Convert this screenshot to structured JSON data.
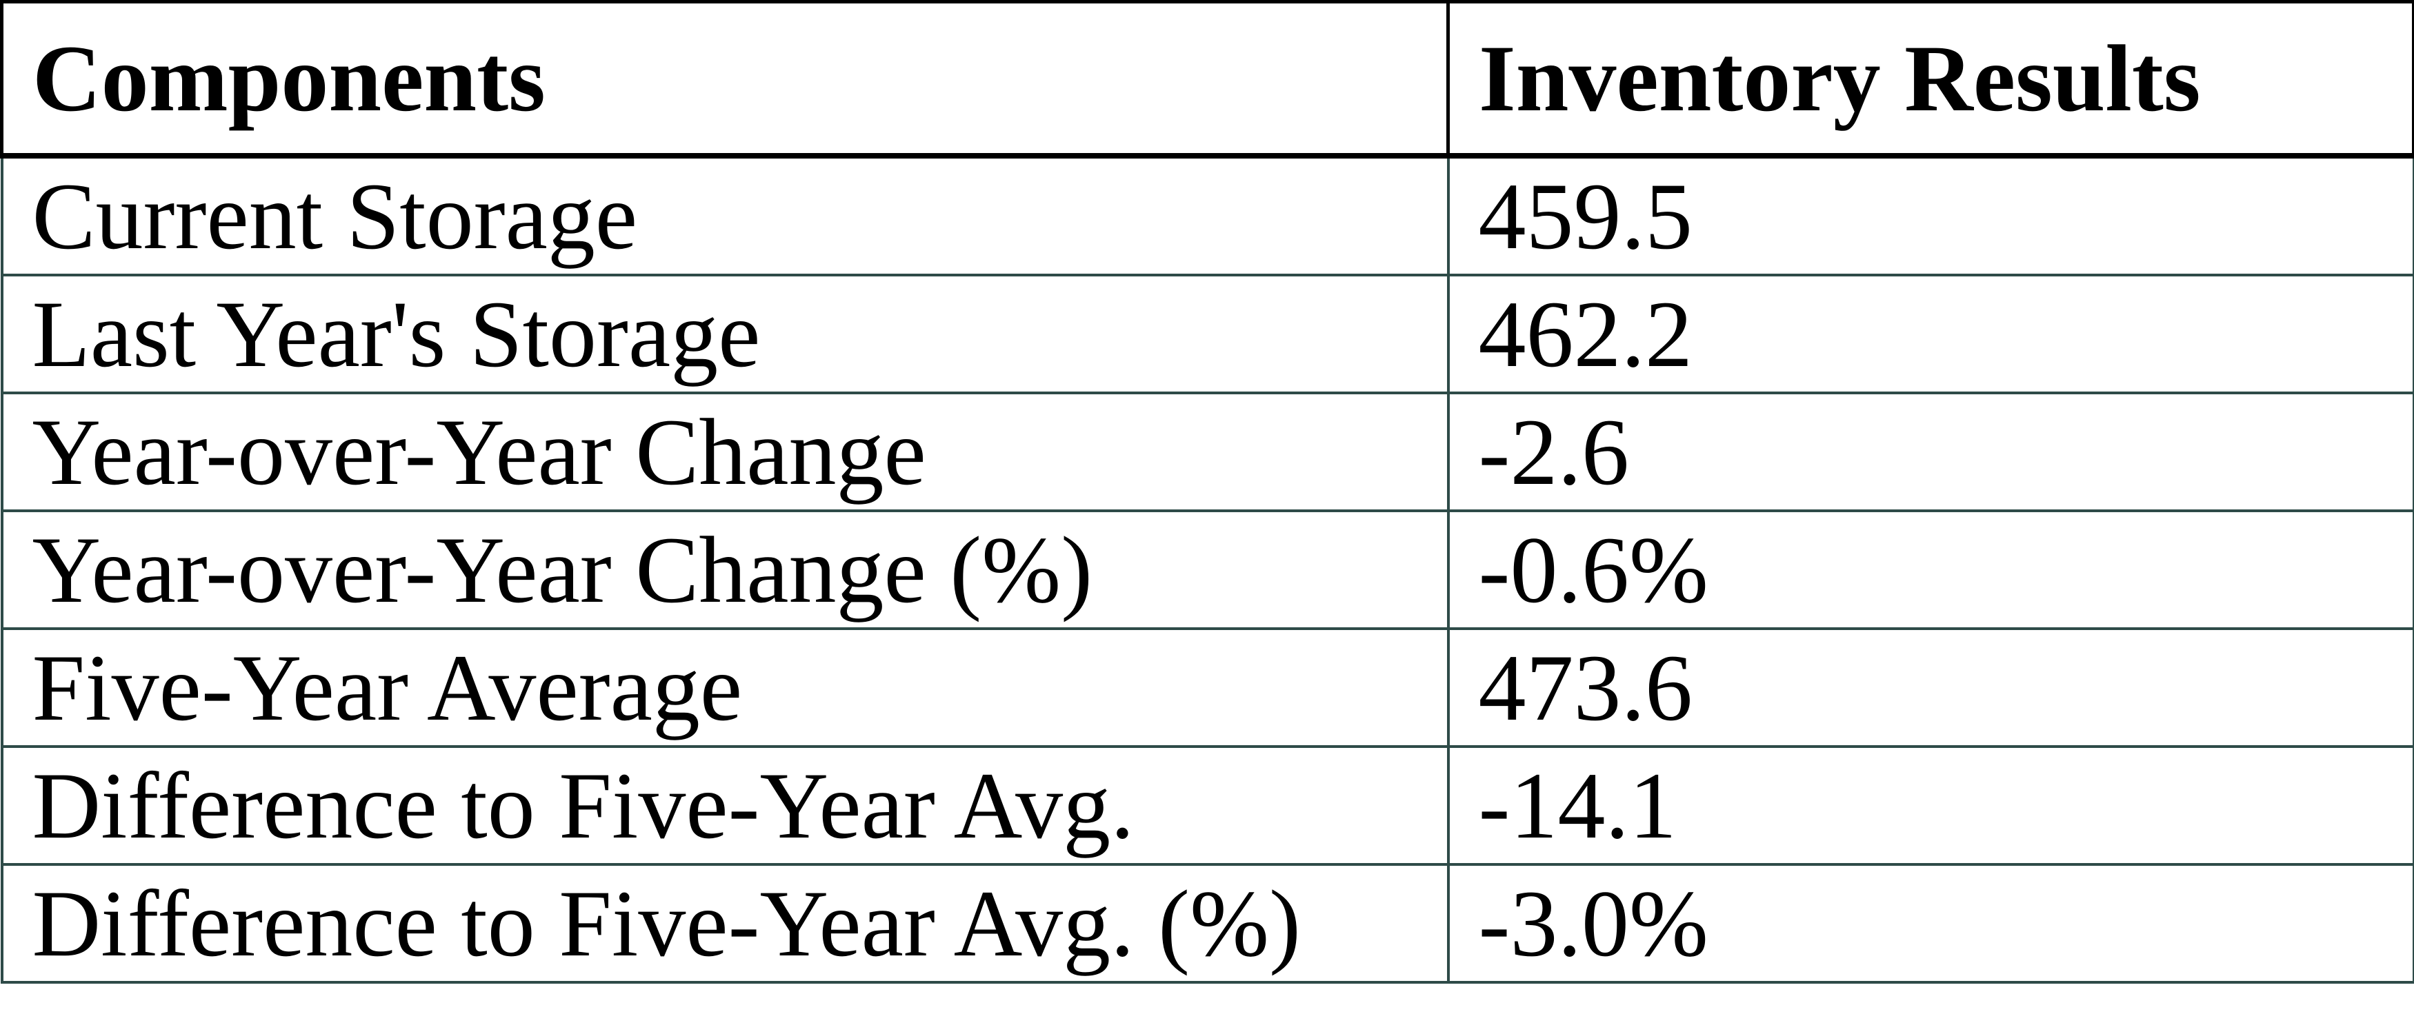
{
  "chart_data": {
    "type": "table",
    "columns": [
      "Components",
      "Inventory Results"
    ],
    "rows": [
      [
        "Current Storage",
        "459.5"
      ],
      [
        "Last Year's Storage",
        "462.2"
      ],
      [
        "Year-over-Year Change",
        "-2.6"
      ],
      [
        "Year-over-Year Change (%)",
        "-0.6%"
      ],
      [
        "Five-Year Average",
        "473.6"
      ],
      [
        "Difference to Five-Year Avg.",
        "-14.1"
      ],
      [
        "Difference to Five-Year Avg. (%)",
        "-3.0%"
      ]
    ],
    "layout": {
      "legend": "none",
      "grid": "on",
      "header_border_color": "#000000",
      "body_border_color": "#2E4B48",
      "background_color": "#FFFFFF",
      "text_color": "#000000"
    }
  }
}
